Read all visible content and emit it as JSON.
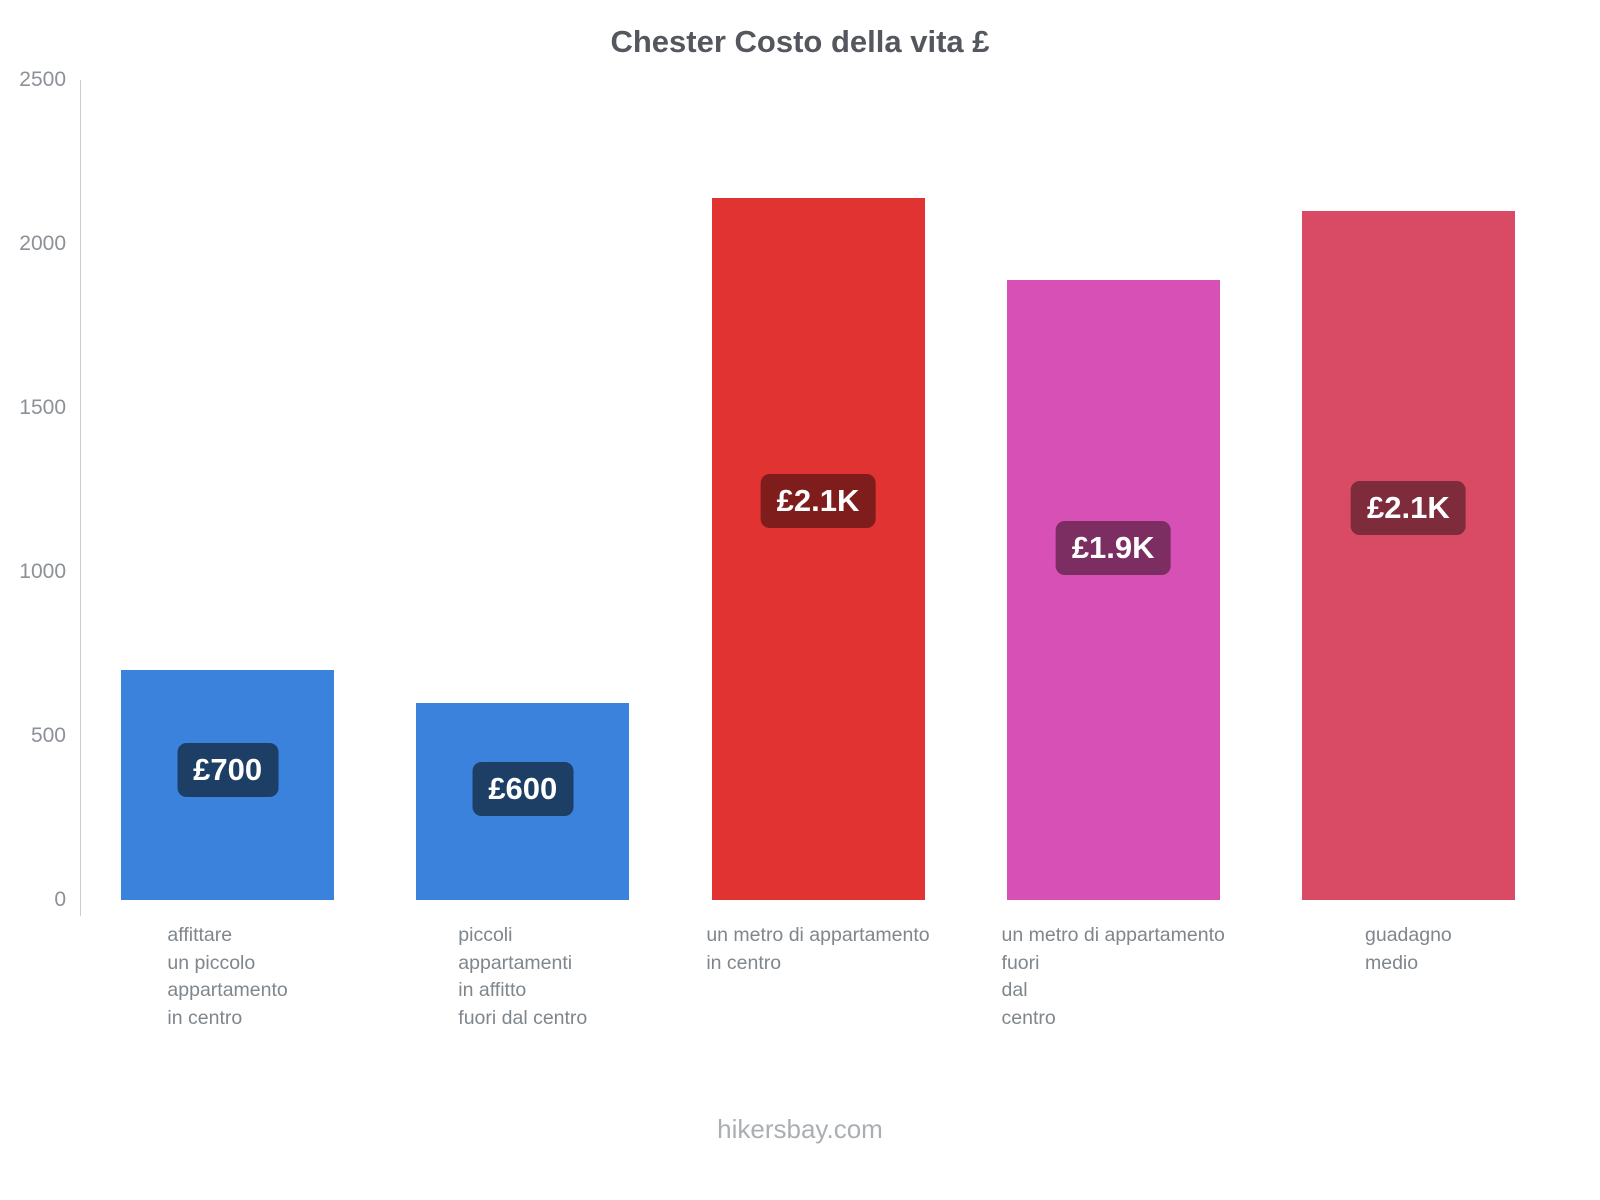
{
  "title": "Chester Costo della vita £",
  "footer": "hikersbay.com",
  "chart_data": {
    "type": "bar",
    "title": "Chester Costo della vita £",
    "categories": [
      "affittare\nun piccolo\nappartamento\nin centro",
      "piccoli\nappartamenti\nin affitto\nfuori dal centro",
      "un metro di appartamento\nin centro",
      "un metro di appartamento\nfuori\ndal\ncentro",
      "guadagno\nmedio"
    ],
    "values": [
      700,
      600,
      2140,
      1890,
      2100
    ],
    "value_labels": [
      "£700",
      "£600",
      "£2.1K",
      "£1.9K",
      "£2.1K"
    ],
    "bar_colors": [
      "#3b82dc",
      "#3b82dc",
      "#e23333",
      "#d650b5",
      "#d94a65"
    ],
    "badge_colors": [
      "#1d3f66",
      "#1d3f66",
      "#7f1d1d",
      "#7c2d62",
      "#7e2b3c"
    ],
    "xlabel": "",
    "ylabel": "",
    "ylim": [
      0,
      2500
    ],
    "yticks": [
      0,
      500,
      1000,
      1500,
      2000,
      2500
    ],
    "grid": false,
    "legend": false,
    "currency": "£"
  }
}
